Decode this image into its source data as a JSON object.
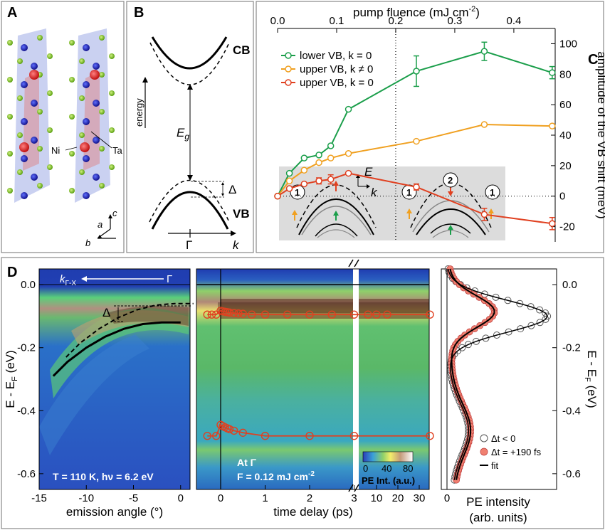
{
  "panels": {
    "a": {
      "label": "A",
      "atom_labels": [
        "Ni",
        "Ta"
      ],
      "axes_labels": [
        "c",
        "a",
        "b"
      ]
    },
    "b": {
      "label": "B",
      "cb": "CB",
      "vb": "VB",
      "energy": "energy",
      "eg": "E",
      "eg_sub": "g",
      "delta": "Δ",
      "gamma": "Γ",
      "k": "k"
    },
    "c": {
      "label": "C",
      "inset_E": "E",
      "inset_k": "k",
      "circle1": "1",
      "circle2": "2"
    },
    "d": {
      "label": "D",
      "kdir": "k",
      "kdir_sub": "Γ-X",
      "gamma": "Γ",
      "delta": "Δ",
      "temp": "T = 110 K, hν = 6.2 eV",
      "at_gamma": "At Γ",
      "fluence": "F = 0.12 mJ cm",
      "fluence_sup": "-2",
      "cbar_label": "PE Int. (a.u.)",
      "cbar_ticks": [
        "0",
        "40",
        "80"
      ]
    }
  },
  "chart_data": [
    {
      "type": "line",
      "xlabel": "pump fluence (mJ cm",
      "xlabel_sup": "-2",
      "ylabel": "amplitude of the VB shift (meV)",
      "xlim": [
        0,
        0.47
      ],
      "ylim": [
        -30,
        110
      ],
      "xticks": [
        "0.0",
        "0.1",
        "0.2",
        "0.3",
        "0.4"
      ],
      "yticks": [
        "100",
        "80",
        "60",
        "40",
        "20",
        "0",
        "-20"
      ],
      "dotted_vline_x": 0.2,
      "series": [
        {
          "name": "lower VB, k = 0",
          "color": "#1a9e4a",
          "x": [
            0,
            0.02,
            0.045,
            0.07,
            0.09,
            0.12,
            0.235,
            0.35,
            0.465
          ],
          "y": [
            0,
            15,
            25,
            27,
            33,
            57,
            82,
            95,
            81
          ],
          "err": [
            0,
            0,
            0,
            0,
            0,
            0,
            10,
            6,
            4
          ]
        },
        {
          "name": "upper VB, k ≠ 0",
          "color": "#f0a020",
          "x": [
            0,
            0.02,
            0.045,
            0.07,
            0.09,
            0.12,
            0.235,
            0.35,
            0.465
          ],
          "y": [
            0,
            10,
            17,
            22,
            25,
            28,
            36,
            47,
            46
          ],
          "err": [
            0,
            0,
            0,
            0,
            0,
            0,
            0,
            0,
            0
          ]
        },
        {
          "name": "upper VB, k = 0",
          "color": "#e04020",
          "x": [
            0,
            0.02,
            0.045,
            0.07,
            0.09,
            0.12,
            0.235,
            0.35,
            0.465
          ],
          "y": [
            0,
            5,
            8,
            10,
            11,
            15,
            6,
            -12,
            -18
          ],
          "err": [
            0,
            0,
            0,
            2,
            3,
            0,
            2,
            4,
            4
          ]
        }
      ]
    },
    {
      "type": "heatmap",
      "xlabel": "emission angle (°)",
      "ylabel": "E - E",
      "ylabel_sub": "F",
      "ylabel_unit": " (eV)",
      "xlim": [
        -15,
        1
      ],
      "ylim": [
        -0.65,
        0.05
      ],
      "xticks": [
        "-15",
        "-10",
        "-5",
        "0"
      ],
      "yticks": [
        "0.0",
        "-0.2",
        "-0.4",
        "-0.6"
      ],
      "dispersion_x": [
        -13.5,
        -12,
        -10,
        -8,
        -6,
        -4,
        -2,
        0
      ],
      "dispersion_y": [
        -0.29,
        -0.245,
        -0.2,
        -0.165,
        -0.14,
        -0.125,
        -0.12,
        -0.12
      ]
    },
    {
      "type": "heatmap",
      "xlabel": "time delay (ps)",
      "xticks": [
        "0",
        "1",
        "2",
        "3",
        "10",
        "20",
        "30"
      ],
      "upper_band_y": -0.095,
      "lower_band_y": -0.48
    },
    {
      "type": "line",
      "xlabel": "PE intensity",
      "xlabel2": "(arb. units)",
      "ylabel": "E - E",
      "ylabel_sub": "F",
      "ylabel_unit": " (eV)",
      "xtick": "0",
      "yticks": [
        "0.0",
        "-0.2",
        "-0.4",
        "-0.6"
      ],
      "series": [
        {
          "name": "Δt < 0",
          "peak_energy": -0.1
        },
        {
          "name": "Δt = +190 fs",
          "peak_energy": -0.085
        },
        {
          "name": "fit"
        }
      ]
    }
  ]
}
